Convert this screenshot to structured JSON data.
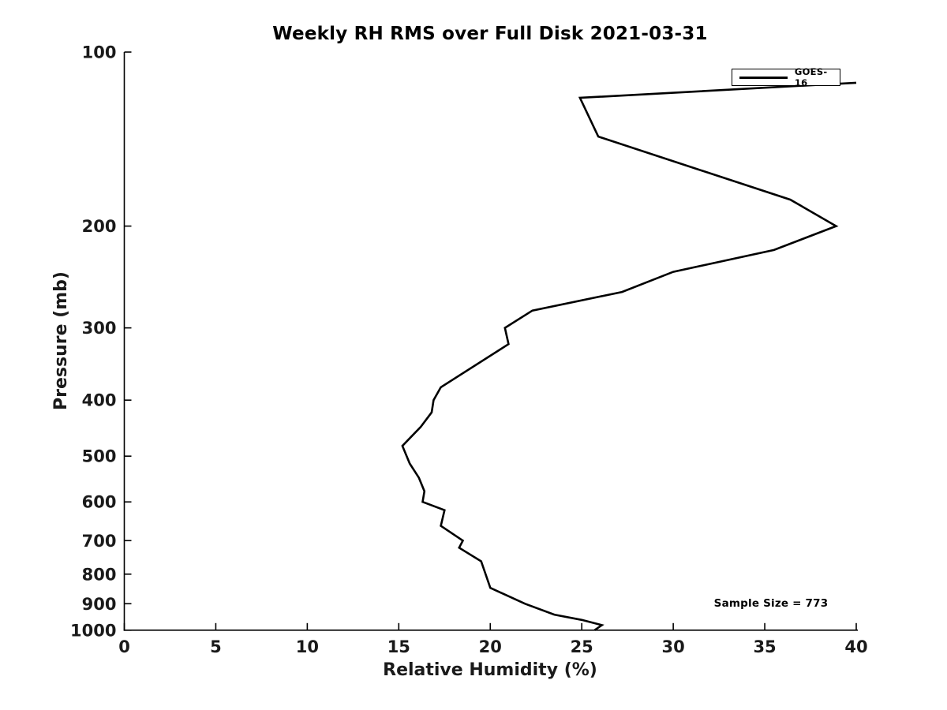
{
  "figure": {
    "background_color": "#ffffff",
    "line_color": "#000000",
    "tick_label_color": "#1a1a1a"
  },
  "chart_data": {
    "type": "line",
    "title": "Weekly RH RMS over Full Disk 2021-03-31",
    "xlabel": "Relative Humidity (%)",
    "ylabel": "Pressure (mb)",
    "xlim": [
      0,
      40
    ],
    "ylim": [
      100,
      1000
    ],
    "y_scale": "log",
    "y_axis_reversed": true,
    "grid": false,
    "x_ticks": [
      0,
      5,
      10,
      15,
      20,
      25,
      30,
      35,
      40
    ],
    "y_ticks": [
      100,
      200,
      300,
      400,
      500,
      600,
      700,
      800,
      900,
      1000
    ],
    "legend": {
      "position": "upper right",
      "entries": [
        {
          "label": "GOES-16",
          "color": "#000000",
          "line_width": 3
        }
      ]
    },
    "annotations": [
      {
        "text": "Sample Size = 773",
        "rh_pct": 35.4,
        "pressure_mb": 900
      }
    ],
    "series": [
      {
        "name": "GOES-16",
        "color": "#000000",
        "points_format": "[pressure_mb, rh_pct]",
        "points": [
          [
            113,
            40.0
          ],
          [
            120,
            24.9
          ],
          [
            140,
            25.9
          ],
          [
            180,
            36.4
          ],
          [
            200,
            38.9
          ],
          [
            220,
            35.5
          ],
          [
            240,
            30.0
          ],
          [
            260,
            27.2
          ],
          [
            280,
            22.3
          ],
          [
            300,
            20.8
          ],
          [
            320,
            21.0
          ],
          [
            380,
            17.3
          ],
          [
            400,
            16.9
          ],
          [
            420,
            16.8
          ],
          [
            445,
            16.2
          ],
          [
            480,
            15.2
          ],
          [
            515,
            15.6
          ],
          [
            545,
            16.1
          ],
          [
            575,
            16.4
          ],
          [
            600,
            16.3
          ],
          [
            620,
            17.5
          ],
          [
            660,
            17.3
          ],
          [
            700,
            18.5
          ],
          [
            720,
            18.3
          ],
          [
            760,
            19.5
          ],
          [
            845,
            20.0
          ],
          [
            900,
            21.9
          ],
          [
            940,
            23.5
          ],
          [
            960,
            25.0
          ],
          [
            980,
            26.1
          ],
          [
            1000,
            25.7
          ]
        ]
      }
    ]
  }
}
